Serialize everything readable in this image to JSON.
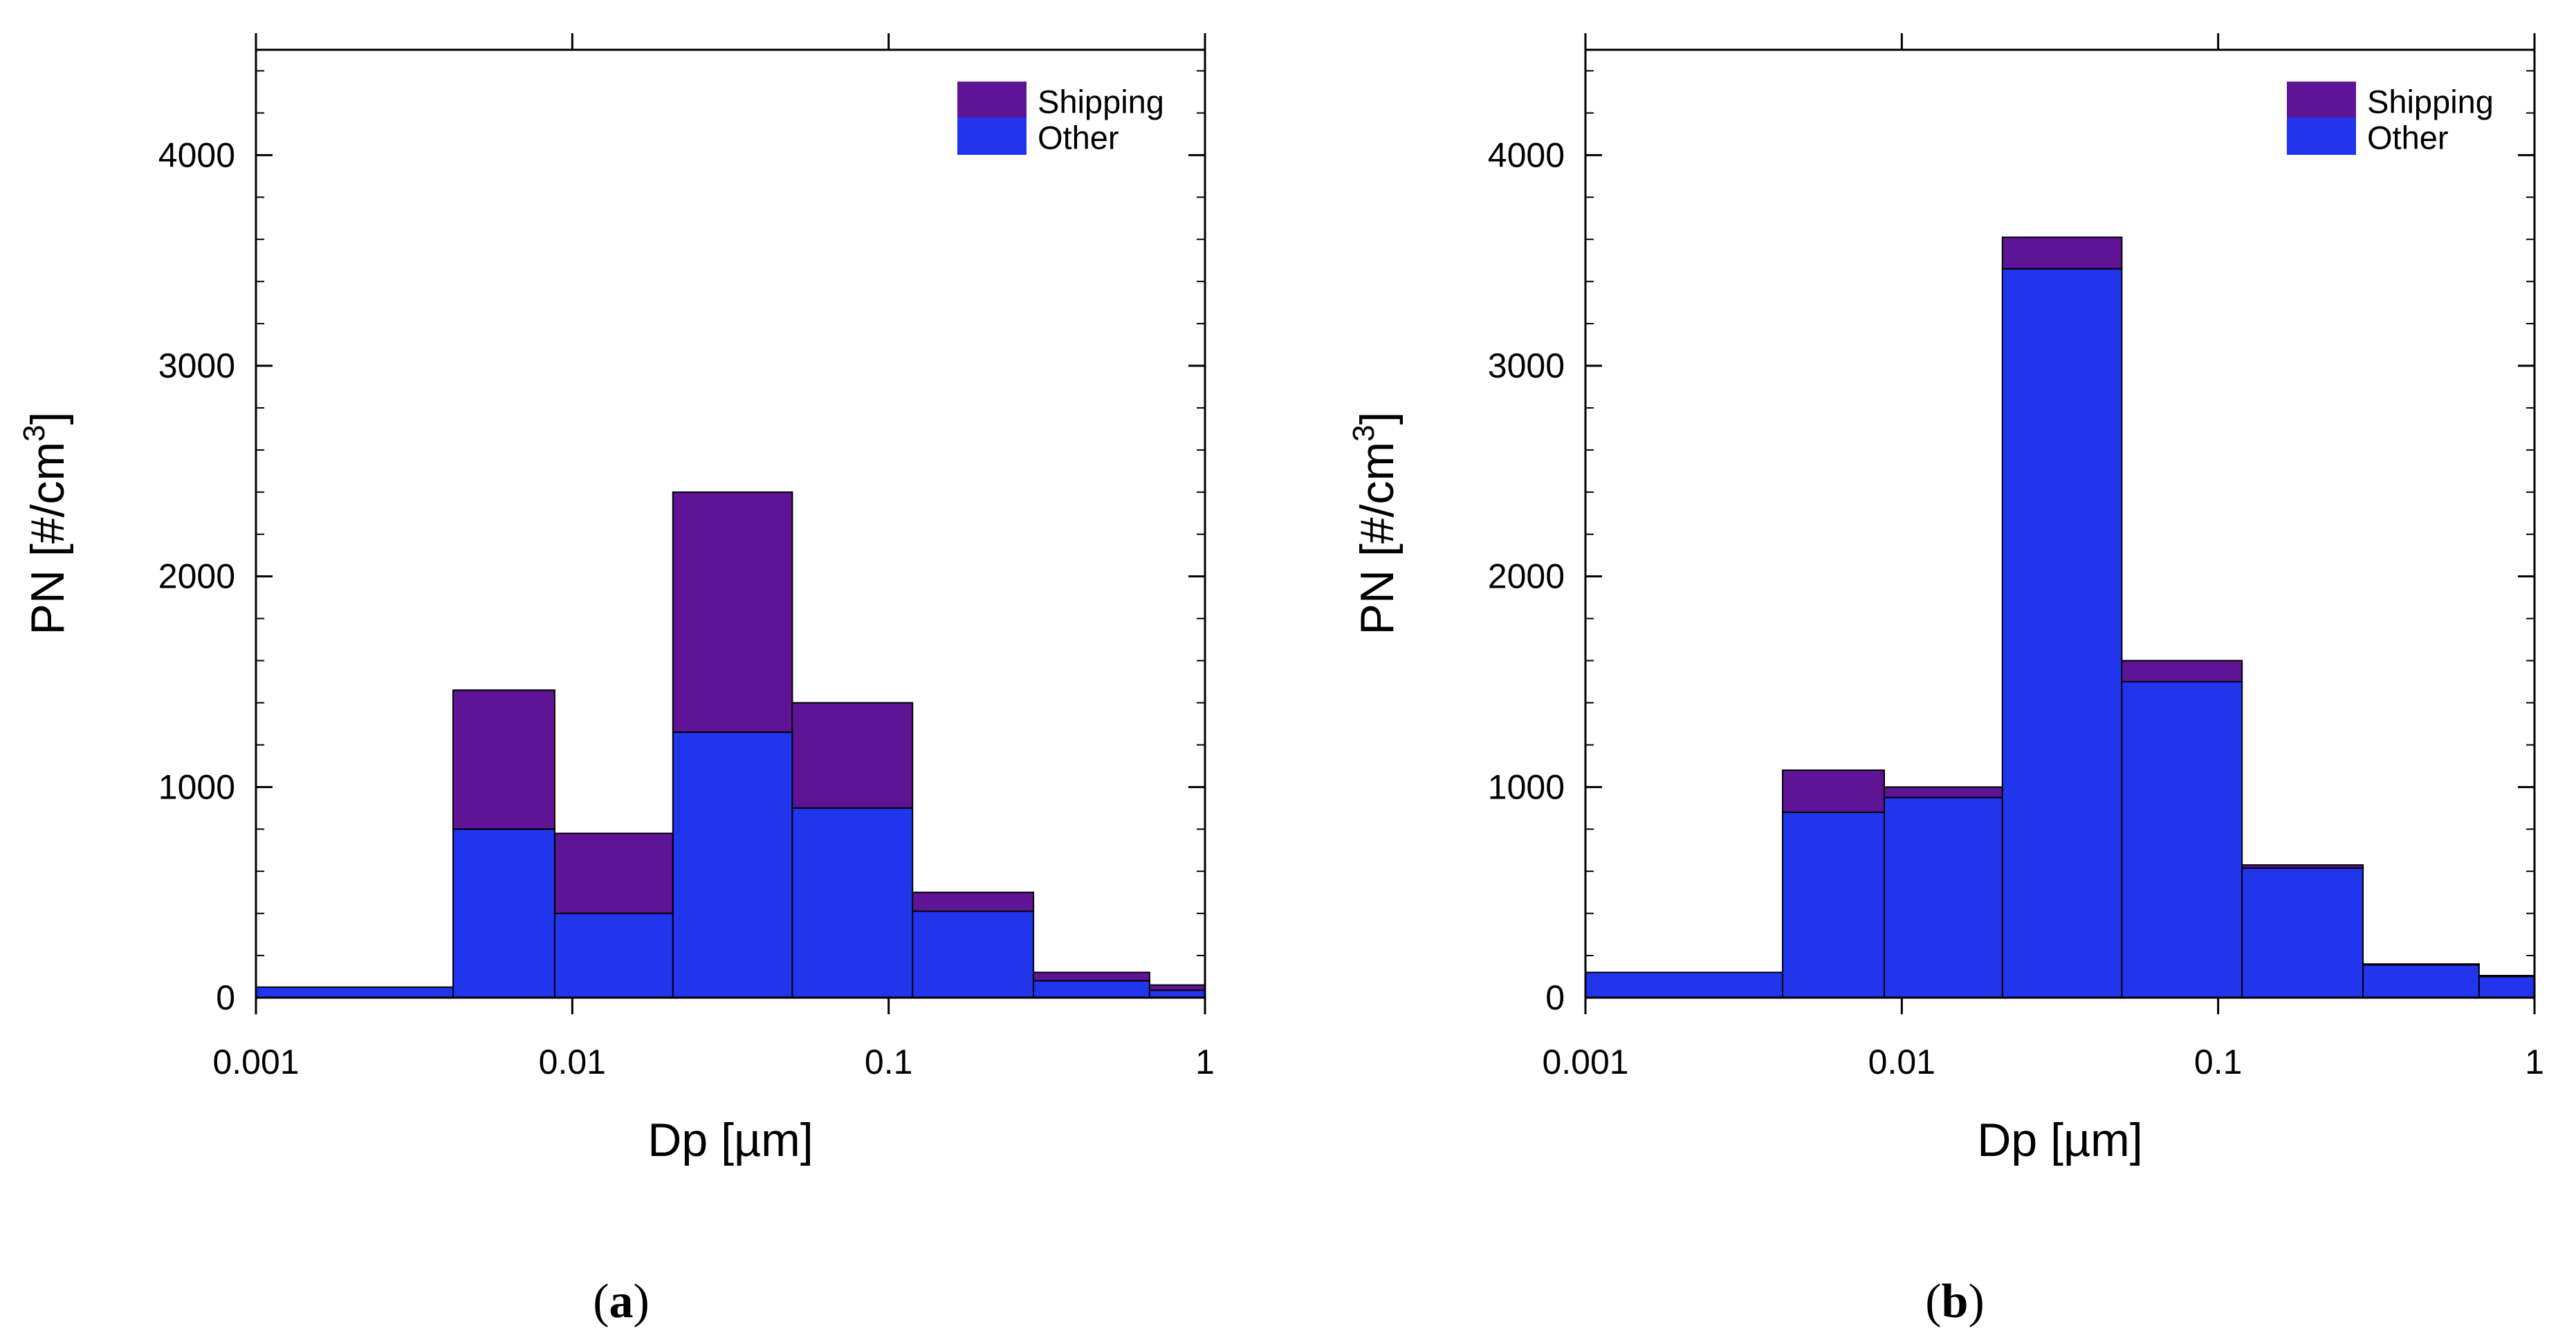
{
  "colors": {
    "shipping": "#5e1495",
    "other": "#2136ec",
    "axis": "#000000",
    "background": "#ffffff"
  },
  "chart_data": [
    {
      "type": "bar",
      "stacked": true,
      "x_scale": "log",
      "caption": "a",
      "xlabel": "Dp [µm]",
      "ylabel_main": "PN [#/cm",
      "ylabel_sup": "3",
      "ylabel_end": "]",
      "xlim": [
        0.001,
        1
      ],
      "ylim": [
        0,
        4500
      ],
      "x_ticks": [
        {
          "value": 0.001,
          "label": "0.001"
        },
        {
          "value": 0.01,
          "label": "0.01"
        },
        {
          "value": 0.1,
          "label": "0.1"
        },
        {
          "value": 1,
          "label": "1"
        }
      ],
      "y_ticks": [
        {
          "value": 0,
          "label": "0"
        },
        {
          "value": 1000,
          "label": "1000"
        },
        {
          "value": 2000,
          "label": "2000"
        },
        {
          "value": 3000,
          "label": "3000"
        },
        {
          "value": 4000,
          "label": "4000"
        }
      ],
      "bin_edges": [
        0.001,
        0.0042,
        0.0088,
        0.0208,
        0.0496,
        0.119,
        0.287,
        0.668,
        1.0
      ],
      "series": [
        {
          "name": "Other",
          "values": [
            50,
            800,
            400,
            1260,
            900,
            410,
            80,
            35
          ]
        },
        {
          "name": "Shipping",
          "values": [
            0,
            660,
            380,
            1140,
            500,
            90,
            40,
            25
          ]
        }
      ],
      "legend": {
        "position": "top-right",
        "entries": [
          "Shipping",
          "Other"
        ]
      }
    },
    {
      "type": "bar",
      "stacked": true,
      "x_scale": "log",
      "caption": "b",
      "xlabel": "Dp [µm]",
      "ylabel_main": "PN [#/cm",
      "ylabel_sup": "3",
      "ylabel_end": "]",
      "xlim": [
        0.001,
        1
      ],
      "ylim": [
        0,
        4500
      ],
      "x_ticks": [
        {
          "value": 0.001,
          "label": "0.001"
        },
        {
          "value": 0.01,
          "label": "0.01"
        },
        {
          "value": 0.1,
          "label": "0.1"
        },
        {
          "value": 1,
          "label": "1"
        }
      ],
      "y_ticks": [
        {
          "value": 0,
          "label": "0"
        },
        {
          "value": 1000,
          "label": "1000"
        },
        {
          "value": 2000,
          "label": "2000"
        },
        {
          "value": 3000,
          "label": "3000"
        },
        {
          "value": 4000,
          "label": "4000"
        }
      ],
      "bin_edges": [
        0.001,
        0.0042,
        0.0088,
        0.0208,
        0.0496,
        0.119,
        0.287,
        0.668,
        1.0
      ],
      "series": [
        {
          "name": "Other",
          "values": [
            120,
            880,
            950,
            3460,
            1500,
            615,
            155,
            100
          ]
        },
        {
          "name": "Shipping",
          "values": [
            0,
            200,
            50,
            150,
            100,
            15,
            5,
            5
          ]
        }
      ],
      "legend": {
        "position": "top-right",
        "entries": [
          "Shipping",
          "Other"
        ]
      }
    }
  ]
}
